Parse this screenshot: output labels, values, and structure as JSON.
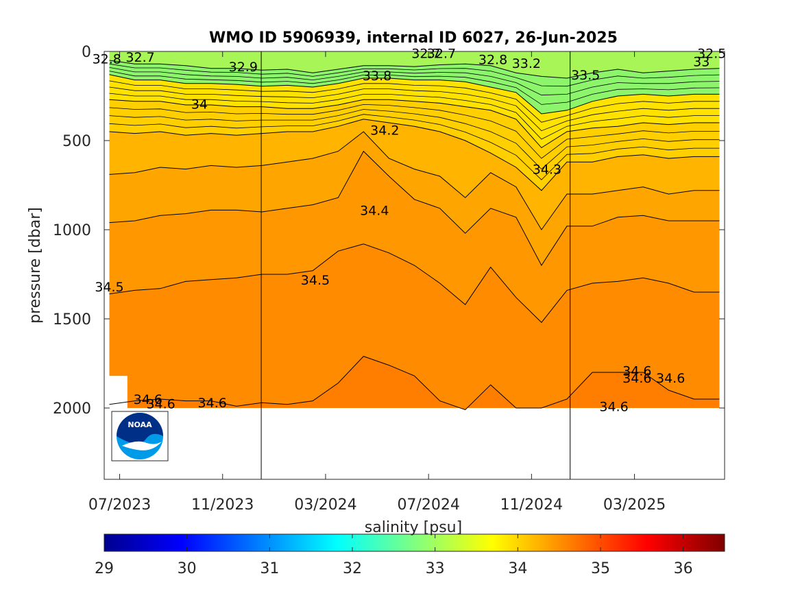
{
  "chart_data": {
    "type": "heatmap",
    "title": "WMO ID 5906939, internal ID 6027, 26-Jun-2025",
    "xlabel": "",
    "ylabel": "pressure [dbar]",
    "colorbar_label": "salinity [psu]",
    "x_tick_labels": [
      "07/2023",
      "11/2023",
      "03/2024",
      "07/2024",
      "11/2024",
      "03/2025"
    ],
    "x_ticks_months": [
      0,
      4,
      8,
      12,
      16,
      20
    ],
    "xlim_months": [
      -0.6,
      23.5
    ],
    "y_tick_labels": [
      "0",
      "500",
      "1000",
      "1500",
      "2000"
    ],
    "y_ticks": [
      0,
      500,
      1000,
      1500,
      2000
    ],
    "ylim": [
      0,
      2400
    ],
    "y_reversed": true,
    "colorbar_ticks": [
      "29",
      "30",
      "31",
      "32",
      "33",
      "34",
      "35",
      "36"
    ],
    "colorbar_range": [
      29,
      36.5
    ],
    "colormap": "jet",
    "year_boundaries_months": [
      5.5,
      17.5
    ],
    "data_xrange_months": [
      -0.4,
      23.3
    ],
    "data_max_pressure": 2000,
    "layers": [
      {
        "level": 33.1,
        "color": "#8cf56c",
        "depth": [
          50,
          70,
          70,
          80,
          95,
          95,
          105,
          100,
          120,
          100,
          80,
          80,
          85,
          75,
          70,
          80,
          120,
          140,
          150,
          120,
          100,
          120,
          110,
          100,
          95
        ]
      },
      {
        "level": 33.8,
        "color": "#ffe200",
        "depth": [
          130,
          160,
          160,
          180,
          180,
          185,
          195,
          190,
          200,
          180,
          150,
          150,
          160,
          160,
          170,
          200,
          230,
          350,
          330,
          280,
          250,
          240,
          250,
          240,
          240
        ]
      },
      {
        "level": 34.0,
        "color": "#ffcf00",
        "depth": [
          270,
          280,
          280,
          300,
          300,
          310,
          310,
          320,
          320,
          300,
          270,
          270,
          280,
          290,
          310,
          330,
          380,
          540,
          450,
          430,
          420,
          400,
          410,
          400,
          400
        ]
      },
      {
        "level": 34.2,
        "color": "#ffb400",
        "depth": [
          450,
          460,
          450,
          470,
          460,
          470,
          460,
          450,
          450,
          420,
          380,
          400,
          420,
          450,
          500,
          570,
          650,
          780,
          620,
          620,
          590,
          580,
          600,
          590,
          590
        ]
      },
      {
        "level": 34.3,
        "color": "#ffa500",
        "depth": [
          690,
          680,
          650,
          660,
          640,
          650,
          640,
          620,
          600,
          560,
          450,
          600,
          660,
          700,
          820,
          680,
          760,
          1000,
          800,
          800,
          780,
          760,
          800,
          780,
          780
        ]
      },
      {
        "level": 34.4,
        "color": "#ff9800",
        "depth": [
          960,
          950,
          920,
          910,
          890,
          890,
          900,
          880,
          860,
          820,
          560,
          700,
          830,
          880,
          1020,
          880,
          930,
          1200,
          980,
          980,
          930,
          920,
          950,
          950,
          950
        ]
      },
      {
        "level": 34.5,
        "color": "#ff8b00",
        "depth": [
          1360,
          1340,
          1330,
          1290,
          1280,
          1270,
          1250,
          1250,
          1230,
          1120,
          1080,
          1130,
          1200,
          1300,
          1420,
          1210,
          1380,
          1520,
          1340,
          1300,
          1290,
          1270,
          1300,
          1350,
          1350
        ]
      },
      {
        "level": 34.6,
        "color": "#ff7e00",
        "depth": [
          1980,
          1960,
          1950,
          1960,
          1960,
          1990,
          1970,
          1980,
          1960,
          1860,
          1710,
          1760,
          1820,
          1960,
          2010,
          1870,
          2000,
          2000,
          1950,
          1800,
          1800,
          1800,
          1900,
          1950,
          1950
        ]
      }
    ],
    "contour_labels": [
      "32.8",
      "32.7",
      "32.9",
      "32.7",
      "32.7",
      "32.8",
      "33.2",
      "33",
      "33.5",
      "32.5",
      "33.8",
      "34",
      "34.2",
      "34.3",
      "34.4",
      "34.5",
      "34.5",
      "34.6",
      "34.6",
      "34.6",
      "34.6",
      "34.6",
      "34.6",
      "34.6"
    ],
    "contour_label_positions": [
      {
        "m": -0.5,
        "p": 40
      },
      {
        "m": 0.8,
        "p": 30
      },
      {
        "m": 4.8,
        "p": 85
      },
      {
        "m": 11.9,
        "p": 10
      },
      {
        "m": 12.5,
        "p": 10
      },
      {
        "m": 14.5,
        "p": 45
      },
      {
        "m": 15.8,
        "p": 65
      },
      {
        "m": 22.6,
        "p": 55
      },
      {
        "m": 18.1,
        "p": 130
      },
      {
        "m": 23.0,
        "p": 10
      },
      {
        "m": 10.0,
        "p": 135
      },
      {
        "m": 3.1,
        "p": 295
      },
      {
        "m": 10.3,
        "p": 440
      },
      {
        "m": 16.6,
        "p": 660
      },
      {
        "m": 9.9,
        "p": 890
      },
      {
        "m": -0.4,
        "p": 1320
      },
      {
        "m": 7.6,
        "p": 1280
      },
      {
        "m": 1.1,
        "p": 1950
      },
      {
        "m": 1.6,
        "p": 1975
      },
      {
        "m": 3.6,
        "p": 1970
      },
      {
        "m": 19.2,
        "p": 1990
      },
      {
        "m": 20.1,
        "p": 1790
      },
      {
        "m": 20.1,
        "p": 1830
      },
      {
        "m": 21.4,
        "p": 1830
      }
    ]
  },
  "colors": {
    "axis": "#262626",
    "contour": "#000000",
    "background": "#ffffff"
  },
  "logo": {
    "text": "NOAA",
    "colors": [
      "#002f87",
      "#009be8",
      "#ffffff"
    ]
  }
}
